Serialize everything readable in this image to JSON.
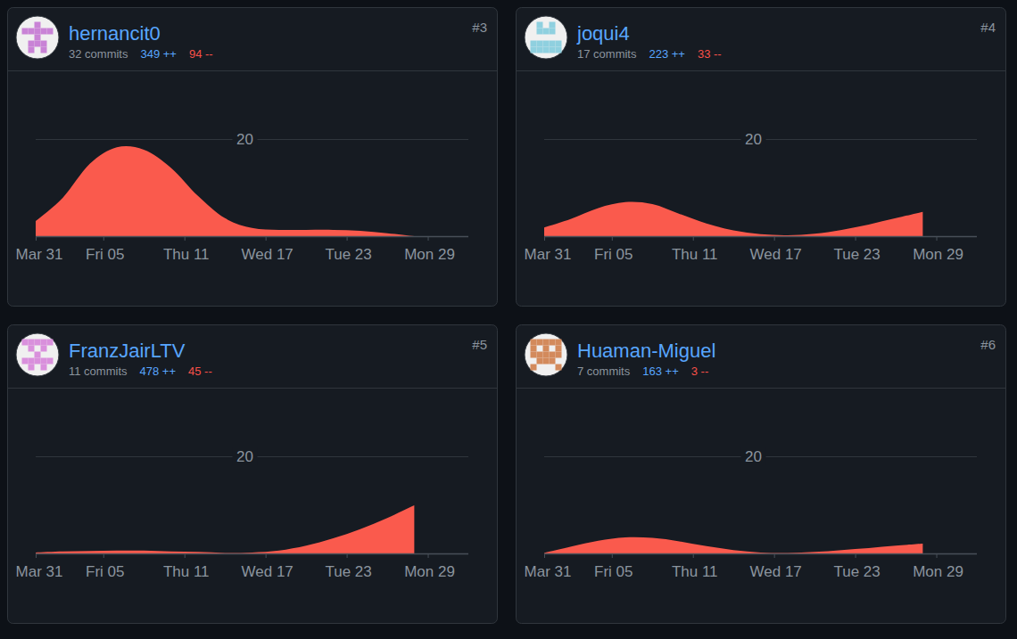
{
  "chart_data": [
    {
      "type": "area",
      "title": "hernancit0",
      "annotations": {
        "rank": "#3",
        "commits": "32 commits",
        "additions": "349 ++",
        "deletions": "94 --"
      },
      "x": [
        0,
        2,
        4,
        6,
        8,
        10,
        12,
        14,
        16,
        18,
        20,
        22,
        24,
        26,
        28
      ],
      "values": [
        3.1,
        7.9,
        14.9,
        18.3,
        17.8,
        14.1,
        8.3,
        3.7,
        1.7,
        1.3,
        1.3,
        1.3,
        1.1,
        0.6,
        0
      ],
      "color": "#fa5a4d",
      "grid": true,
      "xlim": [
        0,
        32
      ],
      "xticks": [
        {
          "value": 0,
          "label": "Mar 31"
        },
        {
          "value": 5,
          "label": "Fri 05"
        },
        {
          "value": 11,
          "label": "Thu 11"
        },
        {
          "value": 17,
          "label": "Wed 17"
        },
        {
          "value": 23,
          "label": "Tue 23"
        },
        {
          "value": 29,
          "label": "Mon 29"
        }
      ],
      "ylim": [
        0,
        20
      ],
      "yticks": [
        20
      ]
    },
    {
      "type": "area",
      "title": "joqui4",
      "annotations": {
        "rank": "#4",
        "commits": "17 commits",
        "additions": "223 ++",
        "deletions": "33 --"
      },
      "x": [
        0,
        2,
        4,
        6,
        8,
        10,
        12,
        14,
        16,
        18,
        20,
        22,
        24,
        26,
        28
      ],
      "values": [
        1.8,
        3.6,
        5.8,
        7.0,
        6.6,
        4.6,
        2.6,
        1.2,
        0.4,
        0.2,
        0.5,
        1.3,
        2.4,
        3.7,
        5.0
      ],
      "color": "#fa5a4d",
      "grid": true,
      "xlim": [
        0,
        32
      ],
      "xticks": [
        {
          "value": 0,
          "label": "Mar 31"
        },
        {
          "value": 5,
          "label": "Fri 05"
        },
        {
          "value": 11,
          "label": "Thu 11"
        },
        {
          "value": 17,
          "label": "Wed 17"
        },
        {
          "value": 23,
          "label": "Tue 23"
        },
        {
          "value": 29,
          "label": "Mon 29"
        }
      ],
      "ylim": [
        0,
        20
      ],
      "yticks": [
        20
      ]
    },
    {
      "type": "area",
      "title": "FranzJairLTV",
      "annotations": {
        "rank": "#5",
        "commits": "11 commits",
        "additions": "478 ++",
        "deletions": "45 --"
      },
      "x": [
        0,
        2,
        4,
        6,
        8,
        10,
        12,
        14,
        16,
        18,
        20,
        22,
        24,
        26,
        28
      ],
      "values": [
        0.2,
        0.4,
        0.5,
        0.6,
        0.6,
        0.4,
        0.3,
        0.1,
        0.2,
        0.6,
        1.6,
        3.1,
        5.0,
        7.3,
        9.9
      ],
      "color": "#fa5a4d",
      "grid": true,
      "xlim": [
        0,
        32
      ],
      "xticks": [
        {
          "value": 0,
          "label": "Mar 31"
        },
        {
          "value": 5,
          "label": "Fri 05"
        },
        {
          "value": 11,
          "label": "Thu 11"
        },
        {
          "value": 17,
          "label": "Wed 17"
        },
        {
          "value": 23,
          "label": "Tue 23"
        },
        {
          "value": 29,
          "label": "Mon 29"
        }
      ],
      "ylim": [
        0,
        20
      ],
      "yticks": [
        20
      ]
    },
    {
      "type": "area",
      "title": "Huaman-Miguel",
      "annotations": {
        "rank": "#6",
        "commits": "7 commits",
        "additions": "163 ++",
        "deletions": "3 --"
      },
      "x": [
        0,
        2,
        4,
        6,
        8,
        10,
        12,
        14,
        16,
        18,
        20,
        22,
        24,
        26,
        28
      ],
      "values": [
        0.1,
        1.4,
        2.6,
        3.3,
        3.2,
        2.5,
        1.5,
        0.7,
        0.2,
        0.1,
        0.3,
        0.7,
        1.1,
        1.6,
        2.0
      ],
      "color": "#fa5a4d",
      "grid": true,
      "xlim": [
        0,
        32
      ],
      "xticks": [
        {
          "value": 0,
          "label": "Mar 31"
        },
        {
          "value": 5,
          "label": "Fri 05"
        },
        {
          "value": 11,
          "label": "Thu 11"
        },
        {
          "value": 17,
          "label": "Wed 17"
        },
        {
          "value": 23,
          "label": "Tue 23"
        },
        {
          "value": 29,
          "label": "Mon 29"
        }
      ],
      "ylim": [
        0,
        20
      ],
      "yticks": [
        20
      ]
    }
  ]
}
